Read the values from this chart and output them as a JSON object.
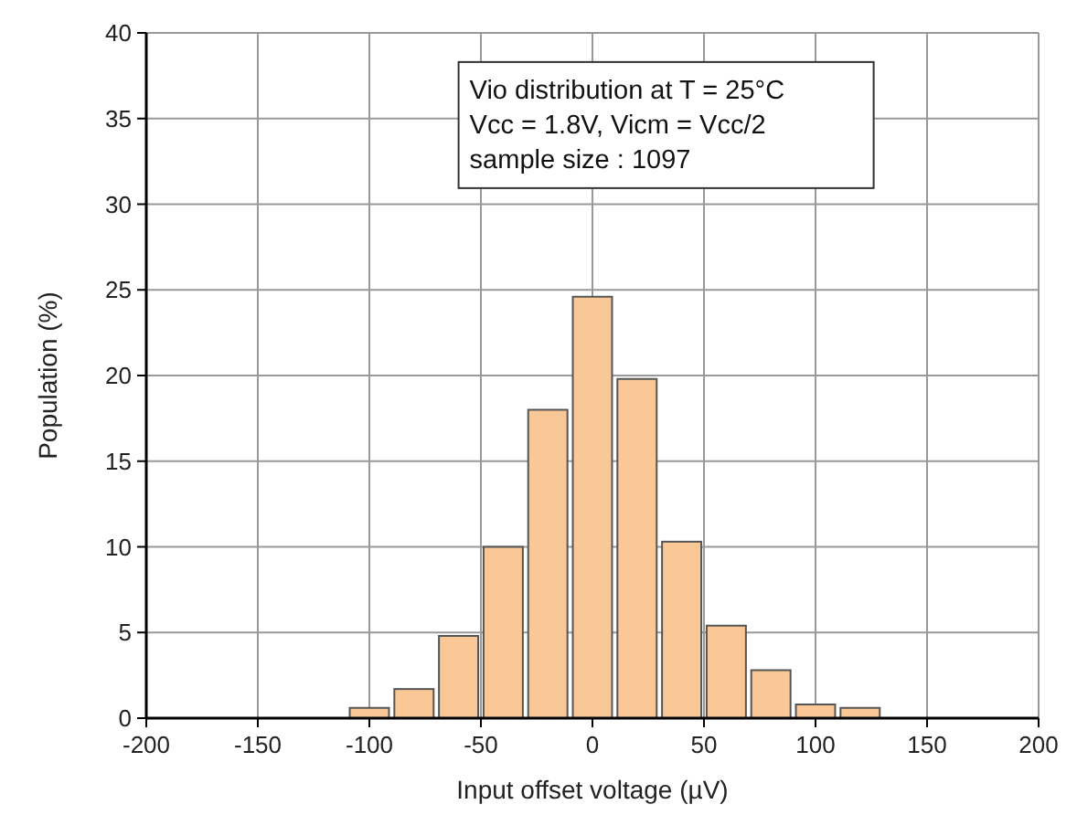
{
  "chart_data": {
    "type": "histogram",
    "xlabel": "Input offset voltage (µV)",
    "ylabel": "Population (%)",
    "bins": [
      -110,
      -90,
      -70,
      -50,
      -30,
      -10,
      10,
      30,
      50,
      70,
      90,
      110,
      130
    ],
    "values": [
      0.6,
      1.7,
      4.8,
      10.0,
      18.0,
      24.6,
      19.8,
      10.3,
      5.4,
      2.8,
      0.8,
      0.6
    ],
    "color": "#fac896",
    "xlim": [
      -200,
      200
    ],
    "xticks": [
      -200,
      -150,
      -100,
      -50,
      0,
      50,
      100,
      150,
      200
    ],
    "ylim": [
      0,
      40
    ],
    "yticks": [
      0,
      5,
      10,
      15,
      20,
      25,
      30,
      35,
      40
    ],
    "grid": true,
    "annotations": [
      "Vio distribution at T = 25°C",
      "Vcc = 1.8V, Vicm = Vcc/2",
      "sample size : 1097"
    ]
  }
}
